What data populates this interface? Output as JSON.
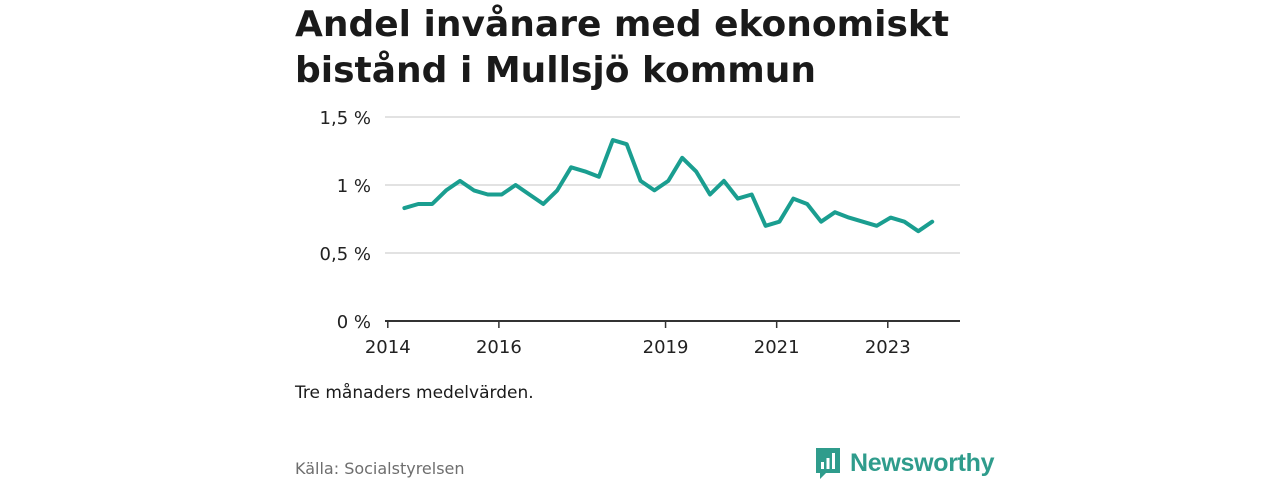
{
  "header": {
    "title": "Andel invånare med ekonomiskt bistånd i Mullsjö kommun"
  },
  "footer": {
    "note": "Tre månaders medelvärden.",
    "source": "Källa: Socialstyrelsen",
    "brand": "Newsworthy",
    "brand_color": "#2f9c8c"
  },
  "chart_data": {
    "type": "line",
    "title": "Andel invånare med ekonomiskt bistånd i Mullsjö kommun",
    "xlabel": "",
    "ylabel": "",
    "ylim": [
      0,
      1.5
    ],
    "grid": true,
    "y_ticks": [
      {
        "value": 0,
        "label": "0 %"
      },
      {
        "value": 0.5,
        "label": "0,5 %"
      },
      {
        "value": 1,
        "label": "1 %"
      },
      {
        "value": 1.5,
        "label": "1,5 %"
      }
    ],
    "x_ticks": [
      {
        "value": 2014,
        "label": "2014"
      },
      {
        "value": 2016,
        "label": "2016"
      },
      {
        "value": 2019,
        "label": "2019"
      },
      {
        "value": 2021,
        "label": "2021"
      },
      {
        "value": 2023,
        "label": "2023"
      }
    ],
    "xlim": [
      2013.95,
      2024.3
    ],
    "line_color": "#1a9e90",
    "series": [
      {
        "name": "Mullsjö",
        "x": [
          2014.3,
          2014.55,
          2014.8,
          2015.05,
          2015.3,
          2015.55,
          2015.8,
          2016.05,
          2016.3,
          2016.55,
          2016.8,
          2017.05,
          2017.3,
          2017.55,
          2017.8,
          2018.05,
          2018.3,
          2018.55,
          2018.8,
          2019.05,
          2019.3,
          2019.55,
          2019.8,
          2020.05,
          2020.3,
          2020.55,
          2020.8,
          2021.05,
          2021.3,
          2021.55,
          2021.8,
          2022.05,
          2022.3,
          2022.55,
          2022.8,
          2023.05,
          2023.3,
          2023.55,
          2023.8
        ],
        "values": [
          0.83,
          0.86,
          0.86,
          0.96,
          1.03,
          0.96,
          0.93,
          0.93,
          1.0,
          0.93,
          0.86,
          0.96,
          1.13,
          1.1,
          1.06,
          1.33,
          1.3,
          1.03,
          0.96,
          1.03,
          1.2,
          1.1,
          0.93,
          1.03,
          0.9,
          0.93,
          0.7,
          0.73,
          0.9,
          0.86,
          0.73,
          0.8,
          0.76,
          0.73,
          0.7,
          0.76,
          0.73,
          0.66,
          0.73
        ]
      }
    ]
  }
}
